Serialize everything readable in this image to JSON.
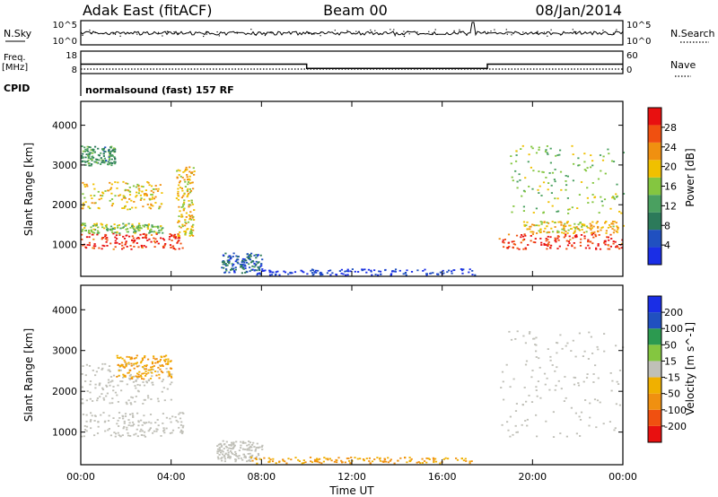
{
  "header": {
    "station": "Adak East (fitACF)",
    "beam": "Beam 00",
    "date": "08/Jan/2014"
  },
  "noise_panel": {
    "left_label": "N.Sky",
    "right_label": "N.Search",
    "left_ticks": [
      "10^5",
      "10^0"
    ],
    "right_ticks": [
      "10^5",
      "10^0"
    ]
  },
  "freq_panel": {
    "left_label_line1": "Freq.",
    "left_label_line2": "[MHz]",
    "left_ticks": [
      "18",
      "8"
    ],
    "right_label": "Nave",
    "right_ticks": [
      "60",
      "0"
    ],
    "freq_series_mhz": [
      [
        0,
        12.2
      ],
      [
        10.0,
        12.2
      ],
      [
        10.0,
        10.3
      ],
      [
        18.0,
        10.3
      ],
      [
        18.0,
        12.2
      ],
      [
        24,
        12.2
      ]
    ],
    "nave_series": [
      [
        0,
        12
      ],
      [
        24,
        12
      ]
    ]
  },
  "cpid_panel": {
    "label": "CPID",
    "value": "normalsound (fast) 157 RF"
  },
  "colors": {
    "power": [
      "#1a2ee6",
      "#2050c0",
      "#2c7a5a",
      "#4aa060",
      "#84c640",
      "#f0c000",
      "#f09010",
      "#f05010",
      "#e81010"
    ],
    "velocity": [
      "#e81010",
      "#f05010",
      "#f09010",
      "#f0b000",
      "#c0c0b8",
      "#84c640",
      "#2c9a50",
      "#2050c0",
      "#1a2ee6"
    ]
  },
  "power_scale": {
    "label": "Power [dB]",
    "ticks": [
      "4",
      "8",
      "12",
      "16",
      "20",
      "24",
      "28"
    ]
  },
  "velocity_scale": {
    "label": "Velocity [m s^-1]",
    "ticks": [
      "-200",
      "-100",
      "-50",
      "-15",
      "15",
      "50",
      "100",
      "200"
    ]
  },
  "chart_data": {
    "type": "heatmap",
    "title": "Adak East (fitACF)   Beam 00   08/Jan/2014",
    "xlabel": "Time UT",
    "ylabel": "Slant Range [km]",
    "x_ticks": [
      "00:00",
      "04:00",
      "08:00",
      "12:00",
      "16:00",
      "20:00",
      "00:00"
    ],
    "y_ticks": [
      "1000",
      "2000",
      "3000",
      "4000"
    ],
    "xlim": [
      0,
      24
    ],
    "ylim": [
      200,
      4600
    ],
    "series": [
      {
        "name": "Power [dB]",
        "regions": [
          {
            "t": [
              0.0,
              4.5
            ],
            "r": [
              900,
              1300
            ],
            "level": 28
          },
          {
            "t": [
              0.0,
              3.6
            ],
            "r": [
              1300,
              1550
            ],
            "level": 16
          },
          {
            "t": [
              0.0,
              3.6
            ],
            "r": [
              1900,
              2600
            ],
            "level": 20
          },
          {
            "t": [
              0.0,
              1.5
            ],
            "r": [
              3000,
              3500
            ],
            "level": 12
          },
          {
            "t": [
              4.2,
              5.0
            ],
            "r": [
              1200,
              3000
            ],
            "level": 20
          },
          {
            "t": [
              6.2,
              8.0
            ],
            "r": [
              300,
              800
            ],
            "level": 8
          },
          {
            "t": [
              7.5,
              17.5
            ],
            "r": [
              250,
              400
            ],
            "level": 4
          },
          {
            "t": [
              18.5,
              24.0
            ],
            "r": [
              900,
              1300
            ],
            "level": 28
          },
          {
            "t": [
              19.5,
              24.0
            ],
            "r": [
              1300,
              1600
            ],
            "level": 20
          },
          {
            "t": [
              19.0,
              24.0
            ],
            "r": [
              1800,
              3500
            ],
            "level": 16
          }
        ]
      },
      {
        "name": "Velocity [m s^-1]",
        "regions": [
          {
            "t": [
              0.0,
              4.5
            ],
            "r": [
              900,
              1500
            ],
            "level": 0
          },
          {
            "t": [
              0.0,
              4.0
            ],
            "r": [
              1700,
              2700
            ],
            "level": 0
          },
          {
            "t": [
              1.5,
              4.0
            ],
            "r": [
              2300,
              2900
            ],
            "level": -50
          },
          {
            "t": [
              6.0,
              8.0
            ],
            "r": [
              300,
              800
            ],
            "level": 0
          },
          {
            "t": [
              7.5,
              17.5
            ],
            "r": [
              250,
              400
            ],
            "level": -50
          },
          {
            "t": [
              18.5,
              24.0
            ],
            "r": [
              900,
              3500
            ],
            "level": 0
          }
        ]
      }
    ]
  }
}
